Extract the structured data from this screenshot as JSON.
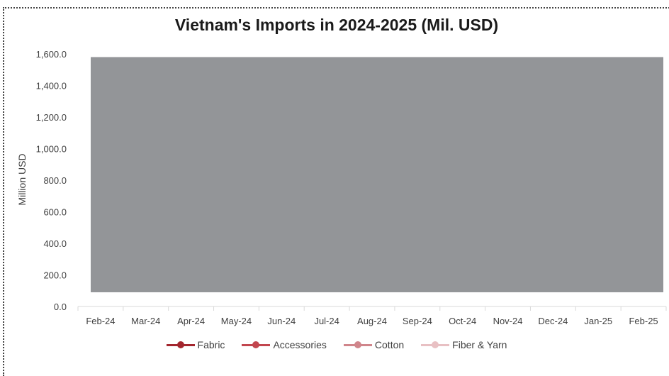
{
  "chart_data": {
    "type": "area",
    "title": "Vietnam's Imports in 2024-2025 (Mil. USD)",
    "ylabel": "Million USD",
    "xlabel": "",
    "categories": [
      "Feb-24",
      "Mar-24",
      "Apr-24",
      "May-24",
      "Jun-24",
      "Jul-24",
      "Aug-24",
      "Sep-24",
      "Oct-24",
      "Nov-24",
      "Dec-24",
      "Jan-25",
      "Feb-25"
    ],
    "y_ticks": [
      "0.0",
      "200.0",
      "400.0",
      "600.0",
      "800.0",
      "1,000.0",
      "1,200.0",
      "1,400.0",
      "1,600.0"
    ],
    "ylim": [
      0,
      1600
    ],
    "grid": false,
    "legend_position": "bottom",
    "occluded_region": {
      "y_from": 90,
      "y_to": 1580,
      "color": "#939598"
    },
    "series": [
      {
        "name": "Fabric",
        "color": "#a3262e"
      },
      {
        "name": "Accessories",
        "color": "#c2464e"
      },
      {
        "name": "Cotton",
        "color": "#d0858b"
      },
      {
        "name": "Fiber & Yarn",
        "color": "#e8c0c3"
      }
    ]
  }
}
